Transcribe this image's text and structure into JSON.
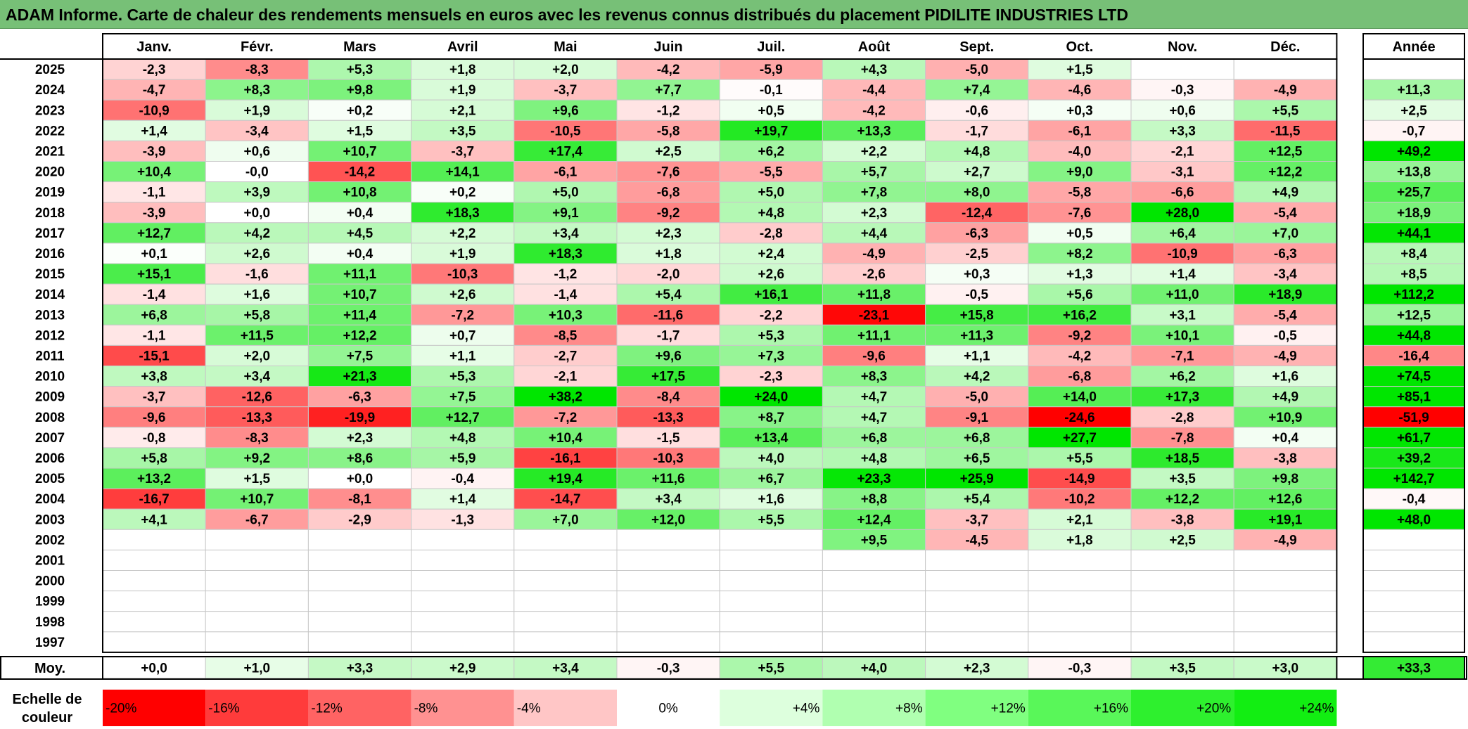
{
  "title": "ADAM Informe. Carte de chaleur des rendements mensuels en euros avec les revenus connus distribués du placement PIDILITE INDUSTRIES LTD",
  "chart_data": {
    "type": "heatmap",
    "title": "ADAM Informe. Carte de chaleur des rendements mensuels en euros avec les revenus connus distribués du placement PIDILITE INDUSTRIES LTD",
    "months": [
      "Janv.",
      "Févr.",
      "Mars",
      "Avril",
      "Mai",
      "Juin",
      "Juil.",
      "Août",
      "Sept.",
      "Oct.",
      "Nov.",
      "Déc."
    ],
    "year_header": "Année",
    "rows": [
      {
        "year": "2025",
        "values": [
          "-2,3",
          "-8,3",
          "+5,3",
          "+1,8",
          "+2,0",
          "-4,2",
          "-5,9",
          "+4,3",
          "-5,0",
          "+1,5",
          "",
          ""
        ],
        "annual": ""
      },
      {
        "year": "2024",
        "values": [
          "-4,7",
          "+8,3",
          "+9,8",
          "+1,9",
          "-3,7",
          "+7,7",
          "-0,1",
          "-4,4",
          "+7,4",
          "-4,6",
          "-0,3",
          "-4,9"
        ],
        "annual": "+11,3"
      },
      {
        "year": "2023",
        "values": [
          "-10,9",
          "+1,9",
          "+0,2",
          "+2,1",
          "+9,6",
          "-1,2",
          "+0,5",
          "-4,2",
          "-0,6",
          "+0,3",
          "+0,6",
          "+5,5"
        ],
        "annual": "+2,5"
      },
      {
        "year": "2022",
        "values": [
          "+1,4",
          "-3,4",
          "+1,5",
          "+3,5",
          "-10,5",
          "-5,8",
          "+19,7",
          "+13,3",
          "-1,7",
          "-6,1",
          "+3,3",
          "-11,5"
        ],
        "annual": "-0,7"
      },
      {
        "year": "2021",
        "values": [
          "-3,9",
          "+0,6",
          "+10,7",
          "-3,7",
          "+17,4",
          "+2,5",
          "+6,2",
          "+2,2",
          "+4,8",
          "-4,0",
          "-2,1",
          "+12,5"
        ],
        "annual": "+49,2"
      },
      {
        "year": "2020",
        "values": [
          "+10,4",
          "-0,0",
          "-14,2",
          "+14,1",
          "-6,1",
          "-7,6",
          "-5,5",
          "+5,7",
          "+2,7",
          "+9,0",
          "-3,1",
          "+12,2"
        ],
        "annual": "+13,8"
      },
      {
        "year": "2019",
        "values": [
          "-1,1",
          "+3,9",
          "+10,8",
          "+0,2",
          "+5,0",
          "-6,8",
          "+5,0",
          "+7,8",
          "+8,0",
          "-5,8",
          "-6,6",
          "+4,9"
        ],
        "annual": "+25,7"
      },
      {
        "year": "2018",
        "values": [
          "-3,9",
          "+0,0",
          "+0,4",
          "+18,3",
          "+9,1",
          "-9,2",
          "+4,8",
          "+2,3",
          "-12,4",
          "-7,6",
          "+28,0",
          "-5,4"
        ],
        "annual": "+18,9"
      },
      {
        "year": "2017",
        "values": [
          "+12,7",
          "+4,2",
          "+4,5",
          "+2,2",
          "+3,4",
          "+2,3",
          "-2,8",
          "+4,4",
          "-6,3",
          "+0,5",
          "+6,4",
          "+7,0"
        ],
        "annual": "+44,1"
      },
      {
        "year": "2016",
        "values": [
          "+0,1",
          "+2,6",
          "+0,4",
          "+1,9",
          "+18,3",
          "+1,8",
          "+2,4",
          "-4,9",
          "-2,5",
          "+8,2",
          "-10,9",
          "-6,3"
        ],
        "annual": "+8,4"
      },
      {
        "year": "2015",
        "values": [
          "+15,1",
          "-1,6",
          "+11,1",
          "-10,3",
          "-1,2",
          "-2,0",
          "+2,6",
          "-2,6",
          "+0,3",
          "+1,3",
          "+1,4",
          "-3,4"
        ],
        "annual": "+8,5"
      },
      {
        "year": "2014",
        "values": [
          "-1,4",
          "+1,6",
          "+10,7",
          "+2,6",
          "-1,4",
          "+5,4",
          "+16,1",
          "+11,8",
          "-0,5",
          "+5,6",
          "+11,0",
          "+18,9"
        ],
        "annual": "+112,2"
      },
      {
        "year": "2013",
        "values": [
          "+6,8",
          "+5,8",
          "+11,4",
          "-7,2",
          "+10,3",
          "-11,6",
          "-2,2",
          "-23,1",
          "+15,8",
          "+16,2",
          "+3,1",
          "-5,4"
        ],
        "annual": "+12,5"
      },
      {
        "year": "2012",
        "values": [
          "-1,1",
          "+11,5",
          "+12,2",
          "+0,7",
          "-8,5",
          "-1,7",
          "+5,3",
          "+11,1",
          "+11,3",
          "-9,2",
          "+10,1",
          "-0,5"
        ],
        "annual": "+44,8"
      },
      {
        "year": "2011",
        "values": [
          "-15,1",
          "+2,0",
          "+7,5",
          "+1,1",
          "-2,7",
          "+9,6",
          "+7,3",
          "-9,6",
          "+1,1",
          "-4,2",
          "-7,1",
          "-4,9"
        ],
        "annual": "-16,4"
      },
      {
        "year": "2010",
        "values": [
          "+3,8",
          "+3,4",
          "+21,3",
          "+5,3",
          "-2,1",
          "+17,5",
          "-2,3",
          "+8,3",
          "+4,2",
          "-6,8",
          "+6,2",
          "+1,6"
        ],
        "annual": "+74,5"
      },
      {
        "year": "2009",
        "values": [
          "-3,7",
          "-12,6",
          "-6,3",
          "+7,5",
          "+38,2",
          "-8,4",
          "+24,0",
          "+4,7",
          "-5,0",
          "+14,0",
          "+17,3",
          "+4,9"
        ],
        "annual": "+85,1"
      },
      {
        "year": "2008",
        "values": [
          "-9,6",
          "-13,3",
          "-19,9",
          "+12,7",
          "-7,2",
          "-13,3",
          "+8,7",
          "+4,7",
          "-9,1",
          "-24,6",
          "-2,8",
          "+10,9"
        ],
        "annual": "-51,9"
      },
      {
        "year": "2007",
        "values": [
          "-0,8",
          "-8,3",
          "+2,3",
          "+4,8",
          "+10,4",
          "-1,5",
          "+13,4",
          "+6,8",
          "+6,8",
          "+27,7",
          "-7,8",
          "+0,4"
        ],
        "annual": "+61,7"
      },
      {
        "year": "2006",
        "values": [
          "+5,8",
          "+9,2",
          "+8,6",
          "+5,9",
          "-16,1",
          "-10,3",
          "+4,0",
          "+4,8",
          "+6,5",
          "+5,5",
          "+18,5",
          "-3,8"
        ],
        "annual": "+39,2"
      },
      {
        "year": "2005",
        "values": [
          "+13,2",
          "+1,5",
          "+0,0",
          "-0,4",
          "+19,4",
          "+11,6",
          "+6,7",
          "+23,3",
          "+25,9",
          "-14,9",
          "+3,5",
          "+9,8"
        ],
        "annual": "+142,7"
      },
      {
        "year": "2004",
        "values": [
          "-16,7",
          "+10,7",
          "-8,1",
          "+1,4",
          "-14,7",
          "+3,4",
          "+1,6",
          "+8,8",
          "+5,4",
          "-10,2",
          "+12,2",
          "+12,6"
        ],
        "annual": "-0,4"
      },
      {
        "year": "2003",
        "values": [
          "+4,1",
          "-6,7",
          "-2,9",
          "-1,3",
          "+7,0",
          "+12,0",
          "+5,5",
          "+12,4",
          "-3,7",
          "+2,1",
          "-3,8",
          "+19,1"
        ],
        "annual": "+48,0"
      },
      {
        "year": "2002",
        "values": [
          "",
          "",
          "",
          "",
          "",
          "",
          "",
          "+9,5",
          "-4,5",
          "+1,8",
          "+2,5",
          "-4,9"
        ],
        "annual": ""
      },
      {
        "year": "2001",
        "values": [
          "",
          "",
          "",
          "",
          "",
          "",
          "",
          "",
          "",
          "",
          "",
          ""
        ],
        "annual": ""
      },
      {
        "year": "2000",
        "values": [
          "",
          "",
          "",
          "",
          "",
          "",
          "",
          "",
          "",
          "",
          "",
          ""
        ],
        "annual": ""
      },
      {
        "year": "1999",
        "values": [
          "",
          "",
          "",
          "",
          "",
          "",
          "",
          "",
          "",
          "",
          "",
          ""
        ],
        "annual": ""
      },
      {
        "year": "1998",
        "values": [
          "",
          "",
          "",
          "",
          "",
          "",
          "",
          "",
          "",
          "",
          "",
          ""
        ],
        "annual": ""
      },
      {
        "year": "1997",
        "values": [
          "",
          "",
          "",
          "",
          "",
          "",
          "",
          "",
          "",
          "",
          "",
          ""
        ],
        "annual": ""
      }
    ],
    "average": {
      "label": "Moy.",
      "values": [
        "+0,0",
        "+1,0",
        "+3,3",
        "+2,9",
        "+3,4",
        "-0,3",
        "+5,5",
        "+4,0",
        "+2,3",
        "-0,3",
        "+3,5",
        "+3,0"
      ],
      "annual": "+33,3"
    },
    "scale": {
      "label_line1": "Echelle de",
      "label_line2": "couleur",
      "stops": [
        "-20%",
        "-16%",
        "-12%",
        "-8%",
        "-4%",
        "0%",
        "+4%",
        "+8%",
        "+12%",
        "+16%",
        "+20%",
        "+24%"
      ],
      "colors": [
        "#ff0000",
        "#ff3b3b",
        "#ff6363",
        "#ff9191",
        "#ffc6c6",
        "#ffffff",
        "#ddffdd",
        "#b0ffb0",
        "#80ff80",
        "#59f759",
        "#2ef02e",
        "#12ee12"
      ]
    },
    "colors": {
      "negative_max": "#ff0000",
      "neutral": "#ffffff",
      "positive_max": "#00e600"
    }
  }
}
